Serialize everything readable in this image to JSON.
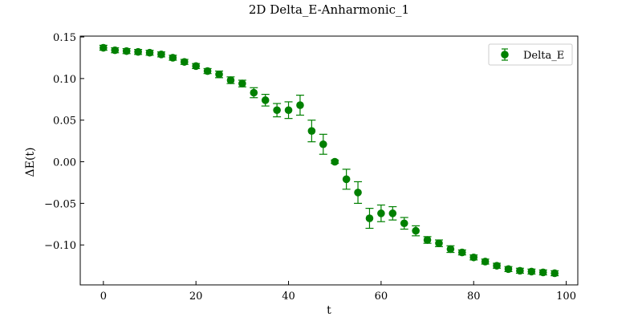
{
  "chart_data": {
    "type": "scatter",
    "title": "2D Delta_E-Anharmonic_1",
    "xlabel": "t",
    "ylabel": "ΔE(t)",
    "xlim": [
      -5,
      102.5
    ],
    "ylim": [
      -0.148,
      0.151
    ],
    "grid": false,
    "legend_position": "top-right",
    "x_ticks": [
      0,
      20,
      40,
      60,
      80,
      100
    ],
    "x_tick_labels": [
      "0",
      "20",
      "40",
      "60",
      "80",
      "100"
    ],
    "y_ticks": [
      -0.1,
      -0.05,
      0.0,
      0.05,
      0.1,
      0.15
    ],
    "y_tick_labels": [
      "−0.10",
      "−0.05",
      "0.00",
      "0.05",
      "0.10",
      "0.15"
    ],
    "series": [
      {
        "name": "Delta_E",
        "color": "#008000",
        "marker": "circle",
        "x": [
          0,
          2.5,
          5,
          7.5,
          10,
          12.5,
          15,
          17.5,
          20,
          22.5,
          25,
          27.5,
          30,
          32.5,
          35,
          37.5,
          40,
          42.5,
          45,
          47.5,
          50,
          52.5,
          55,
          57.5,
          60,
          62.5,
          65,
          67.5,
          70,
          72.5,
          75,
          77.5,
          80,
          82.5,
          85,
          87.5,
          90,
          92.5,
          95,
          97.5
        ],
        "y": [
          0.137,
          0.134,
          0.133,
          0.132,
          0.131,
          0.129,
          0.125,
          0.12,
          0.115,
          0.109,
          0.105,
          0.098,
          0.094,
          0.083,
          0.074,
          0.062,
          0.062,
          0.068,
          0.037,
          0.021,
          0.0,
          -0.021,
          -0.037,
          -0.068,
          -0.062,
          -0.062,
          -0.074,
          -0.083,
          -0.094,
          -0.098,
          -0.105,
          -0.109,
          -0.115,
          -0.12,
          -0.125,
          -0.129,
          -0.131,
          -0.132,
          -0.133,
          -0.134
        ],
        "yerr": [
          0.003,
          0.003,
          0.003,
          0.003,
          0.003,
          0.003,
          0.003,
          0.003,
          0.003,
          0.003,
          0.004,
          0.004,
          0.004,
          0.006,
          0.007,
          0.008,
          0.01,
          0.012,
          0.013,
          0.012,
          0.002,
          0.012,
          0.013,
          0.012,
          0.01,
          0.008,
          0.007,
          0.006,
          0.004,
          0.004,
          0.004,
          0.003,
          0.003,
          0.003,
          0.003,
          0.003,
          0.003,
          0.003,
          0.003,
          0.003
        ]
      }
    ]
  }
}
